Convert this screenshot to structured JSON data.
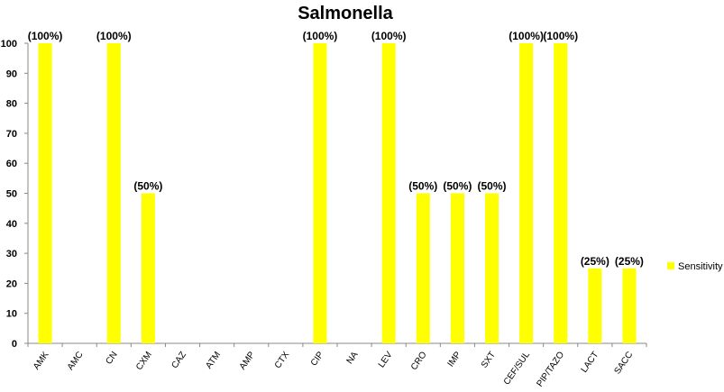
{
  "chart_data": {
    "type": "bar",
    "title": "Salmonella",
    "xlabel": "",
    "ylabel": "",
    "ylim": [
      0,
      100
    ],
    "yticks": [
      0,
      10,
      20,
      30,
      40,
      50,
      60,
      70,
      80,
      90,
      100
    ],
    "grid": false,
    "legend_position": "right",
    "categories": [
      "AMK",
      "AMC",
      "CN",
      "CXM",
      "CAZ",
      "ATM",
      "AMP",
      "CTX",
      "CIP",
      "NA",
      "LEV",
      "CRO",
      "IMP",
      "SXT",
      "CEF/SUL",
      "PIP/TAZO",
      "LACT",
      "SACC"
    ],
    "series": [
      {
        "name": "Sensitivity",
        "color": "#FFFF00",
        "values": [
          100,
          0,
          100,
          50,
          0,
          0,
          0,
          0,
          100,
          0,
          100,
          50,
          50,
          50,
          100,
          100,
          25,
          25
        ],
        "data_labels": [
          "(100%)",
          null,
          "(100%)",
          "(50%)",
          null,
          null,
          null,
          null,
          "(100%)",
          null,
          "(100%)",
          "(50%)",
          "(50%)",
          "(50%)",
          "(100%)",
          "(100%)",
          "(25%)",
          "(25%)"
        ]
      }
    ]
  }
}
